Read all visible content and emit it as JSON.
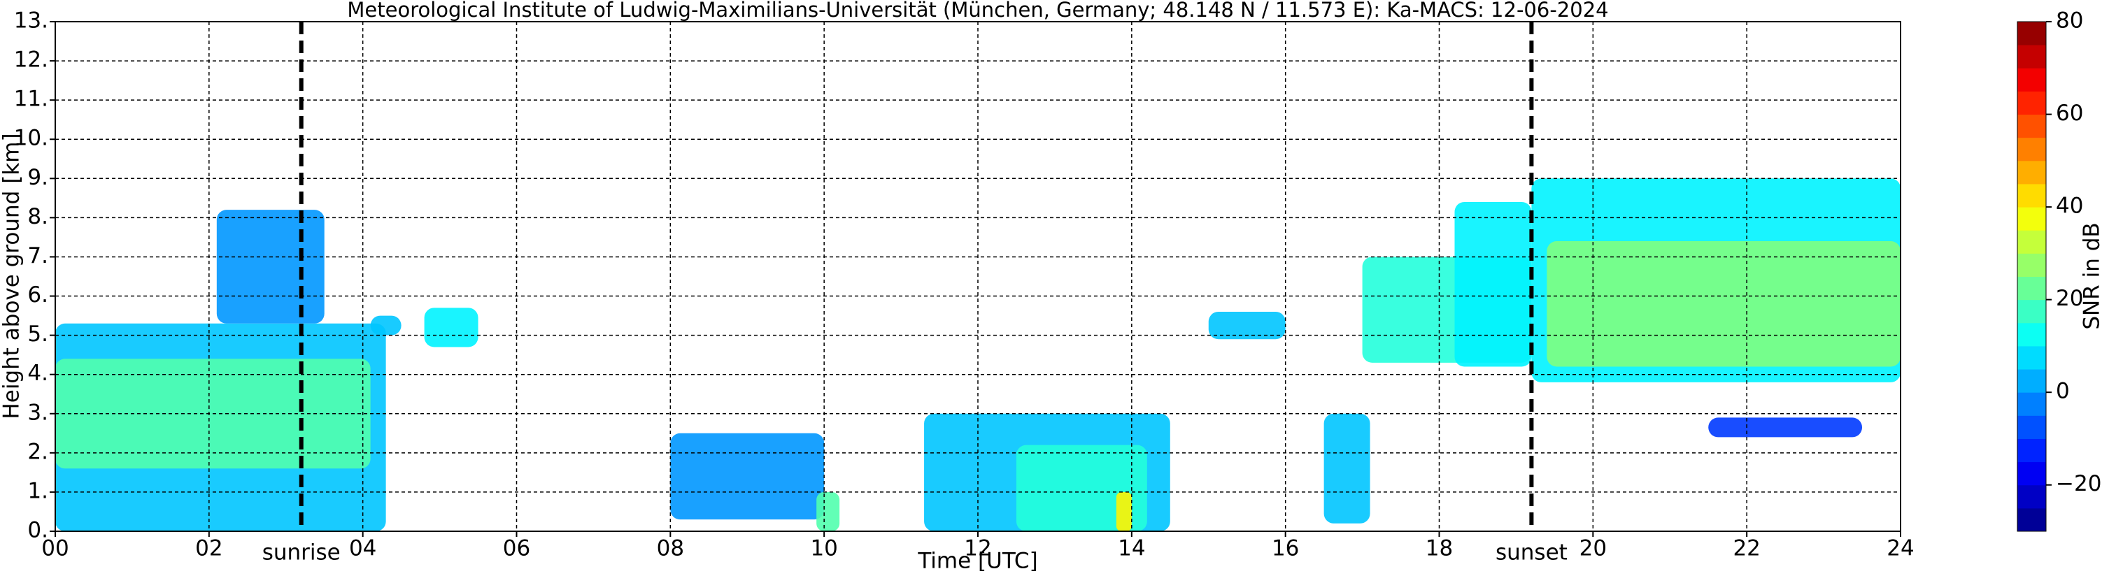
{
  "chart_data": {
    "type": "time-height",
    "title": "Meteorological Institute of Ludwig-Maximilians-Universität (München, Germany; 48.148 N / 11.573 E):    Ka-MACS: 12-06-2024",
    "xlabel": "Time [UTC]",
    "ylabel": "Height above ground [km]",
    "xlim": [
      0,
      24
    ],
    "ylim": [
      0,
      13
    ],
    "xticks": [
      {
        "value": 0,
        "label": "00"
      },
      {
        "value": 2,
        "label": "02"
      },
      {
        "value": 4,
        "label": "04"
      },
      {
        "value": 6,
        "label": "06"
      },
      {
        "value": 8,
        "label": "08"
      },
      {
        "value": 10,
        "label": "10"
      },
      {
        "value": 12,
        "label": "12"
      },
      {
        "value": 14,
        "label": "14"
      },
      {
        "value": 16,
        "label": "16"
      },
      {
        "value": 18,
        "label": "18"
      },
      {
        "value": 20,
        "label": "20"
      },
      {
        "value": 22,
        "label": "22"
      },
      {
        "value": 24,
        "label": "24"
      }
    ],
    "yticks": [
      {
        "value": 0,
        "label": "0."
      },
      {
        "value": 1,
        "label": "1."
      },
      {
        "value": 2,
        "label": "2."
      },
      {
        "value": 3,
        "label": "3."
      },
      {
        "value": 4,
        "label": "4."
      },
      {
        "value": 5,
        "label": "5."
      },
      {
        "value": 6,
        "label": "6."
      },
      {
        "value": 7,
        "label": "7."
      },
      {
        "value": 8,
        "label": "8."
      },
      {
        "value": 9,
        "label": "9."
      },
      {
        "value": 10,
        "label": "10."
      },
      {
        "value": 11,
        "label": "11."
      },
      {
        "value": 12,
        "label": "12."
      },
      {
        "value": 13,
        "label": "13."
      }
    ],
    "grid": true,
    "colorbar": {
      "label": "SNR in dB",
      "clim": [
        -30,
        80
      ],
      "levels": 22,
      "ticks": [
        {
          "value": -20,
          "label": "−20"
        },
        0,
        20,
        40,
        60,
        80
      ]
    },
    "annotations": [
      {
        "text": "sunrise",
        "x": 3.2
      },
      {
        "text": "sunset",
        "x": 19.2
      }
    ],
    "echoes": [
      {
        "time": [
          0,
          4.3
        ],
        "height": [
          0,
          5.3
        ],
        "snr": 5
      },
      {
        "time": [
          0,
          4.1
        ],
        "height": [
          1.6,
          4.4
        ],
        "snr": 20
      },
      {
        "time": [
          2.1,
          3.5
        ],
        "height": [
          5.3,
          8.2
        ],
        "snr": 0
      },
      {
        "time": [
          4.1,
          4.5
        ],
        "height": [
          5.0,
          5.5
        ],
        "snr": 5
      },
      {
        "time": [
          4.8,
          5.5
        ],
        "height": [
          4.7,
          5.7
        ],
        "snr": 10
      },
      {
        "time": [
          8.0,
          10.0
        ],
        "height": [
          0.3,
          2.5
        ],
        "snr": 0
      },
      {
        "time": [
          9.9,
          10.2
        ],
        "height": [
          0,
          1.0
        ],
        "snr": 20
      },
      {
        "time": [
          11.3,
          14.5
        ],
        "height": [
          0,
          3.0
        ],
        "snr": 5
      },
      {
        "time": [
          12.5,
          14.2
        ],
        "height": [
          0,
          2.2
        ],
        "snr": 15
      },
      {
        "time": [
          13.8,
          14.0
        ],
        "height": [
          0,
          1.0
        ],
        "snr": 40
      },
      {
        "time": [
          15.0,
          16.0
        ],
        "height": [
          4.9,
          5.6
        ],
        "snr": 5
      },
      {
        "time": [
          16.5,
          17.1
        ],
        "height": [
          0.2,
          3.0
        ],
        "snr": 5
      },
      {
        "time": [
          17.0,
          19.2
        ],
        "height": [
          4.3,
          7.0
        ],
        "snr": 15
      },
      {
        "time": [
          18.2,
          19.2
        ],
        "height": [
          4.2,
          8.4
        ],
        "snr": 10
      },
      {
        "time": [
          19.2,
          24.0
        ],
        "height": [
          3.8,
          9.0
        ],
        "snr": 10
      },
      {
        "time": [
          19.4,
          24.0
        ],
        "height": [
          4.2,
          7.4
        ],
        "snr": 25
      },
      {
        "time": [
          21.5,
          23.5
        ],
        "height": [
          2.4,
          2.9
        ],
        "snr": -10
      }
    ]
  }
}
